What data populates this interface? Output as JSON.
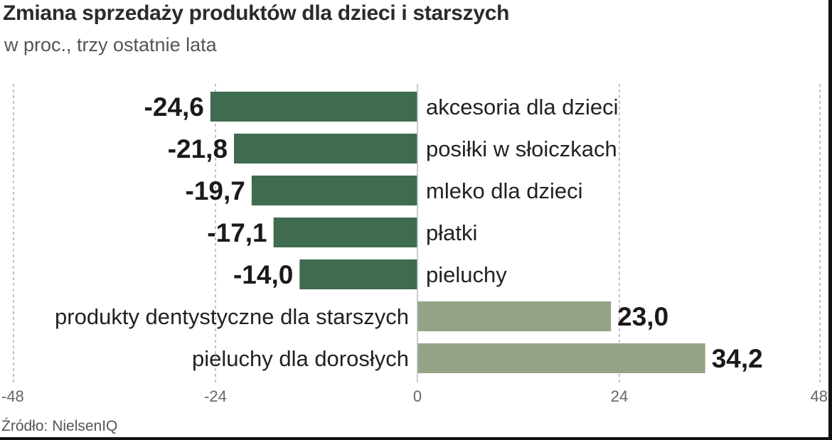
{
  "header": {
    "title": "Zmiana sprzedaży produktów dla dzieci i starszych",
    "subtitle": "w proc., trzy ostatnie lata"
  },
  "footer": {
    "source": "Źródło: NielsenIQ"
  },
  "colors": {
    "negative_bar": "#3f6b4f",
    "positive_bar": "#94a387",
    "gridline": "#9a9a9a"
  },
  "chart_data": {
    "type": "bar",
    "orientation": "horizontal",
    "title": "Zmiana sprzedaży produktów dla dzieci i starszych",
    "subtitle": "w proc., trzy ostatnie lata",
    "categories": [
      "akcesoria dla dzieci",
      "posiłki w słoiczkach",
      "mleko dla dzieci",
      "płatki",
      "pieluchy",
      "produkty dentystyczne dla starszych",
      "pieluchy dla dorosłych"
    ],
    "values": [
      -24.6,
      -21.8,
      -19.7,
      -17.1,
      -14.0,
      23.0,
      34.2
    ],
    "value_labels": [
      "-24,6",
      "-21,8",
      "-19,7",
      "-17,1",
      "-14,0",
      "23,0",
      "34,2"
    ],
    "xlim": [
      -48,
      48
    ],
    "xticks": [
      -48,
      -24,
      0,
      24,
      48
    ],
    "xtick_labels": [
      "-48",
      "-24",
      "0",
      "24",
      "48"
    ],
    "grid": "vertical dashed",
    "legend": "none"
  }
}
